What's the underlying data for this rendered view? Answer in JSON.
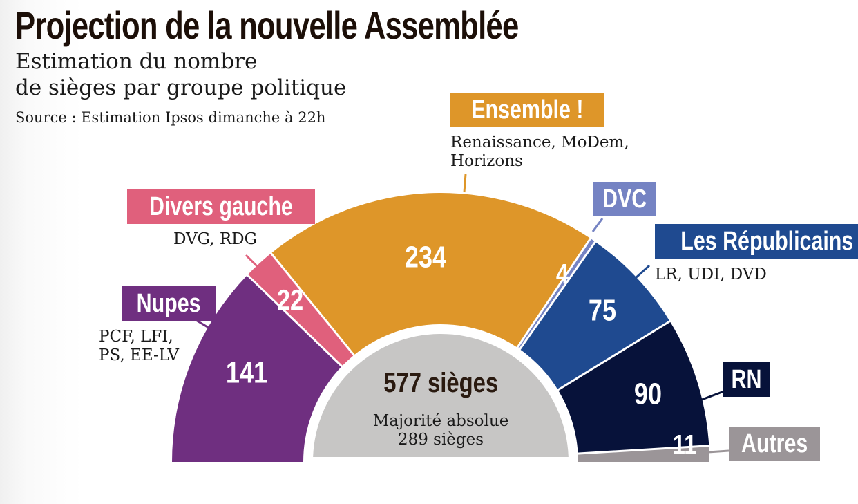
{
  "title": "Projection de la nouvelle Assemblée",
  "subtitle_line1": "Estimation du nombre",
  "subtitle_line2": "de sièges par groupe politique",
  "source": "Source : Estimation Ipsos dimanche à 22h",
  "center": {
    "total": "577 sièges",
    "majority_line1": "Majorité absolue",
    "majority_line2": "289 sièges"
  },
  "chart_data": {
    "type": "pie",
    "variant": "half-donut",
    "total": 577,
    "slices": [
      {
        "name": "Nupes",
        "members": [
          "PCF,  LFI,",
          "PS, EE-LV"
        ],
        "value": 141,
        "color": "#6f2f80"
      },
      {
        "name": "Divers gauche",
        "members": [
          "DVG, RDG"
        ],
        "value": 22,
        "color": "#e0607c"
      },
      {
        "name": "Ensemble !",
        "members": [
          "Renaissance, MoDem,",
          "Horizons"
        ],
        "value": 234,
        "color": "#de9629"
      },
      {
        "name": "DVC",
        "members": [],
        "value": 4,
        "color": "#7583c3"
      },
      {
        "name": "Les Républicains",
        "members": [
          "LR, UDI, DVD"
        ],
        "value": 75,
        "color": "#1f4a90"
      },
      {
        "name": "RN",
        "members": [],
        "value": 90,
        "color": "#07123a"
      },
      {
        "name": "Autres",
        "members": [],
        "value": 11,
        "color": "#9b9598"
      }
    ],
    "center_color": "#c7c6c5"
  }
}
